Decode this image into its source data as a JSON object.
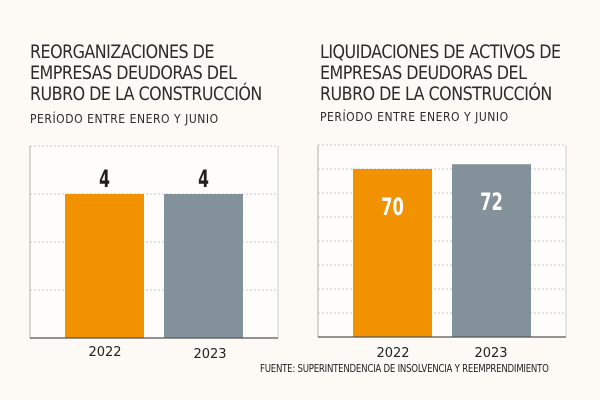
{
  "colors": {
    "orange": "#f39200",
    "gray": "#83919a",
    "background": "#fdf9f5",
    "plot_bg": "#fefcfa",
    "text": "#2b2b2b"
  },
  "source": "FUENTE: SUPERINTENDENCIA DE INSOLVENCIA Y REEMPRENDIMIENTO",
  "chart_data": [
    {
      "type": "bar",
      "title_lines": [
        "REORGANIZACIONES DE",
        "EMPRESAS DEUDORAS DEL",
        "RUBRO DE LA CONSTRUCCIÓN"
      ],
      "subtitle": "PERÍODO ENTRE ENERO Y JUNIO",
      "categories": [
        "2022",
        "2023"
      ],
      "values": [
        4,
        4
      ],
      "value_labels": [
        "4",
        "4"
      ],
      "label_position": "above",
      "ylim": [
        0,
        5.333
      ],
      "grid_lines": 4,
      "grid": true,
      "xlabel": "",
      "ylabel": ""
    },
    {
      "type": "bar",
      "title_lines": [
        "LIQUIDACIONES DE ACTIVOS DE",
        "EMPRESAS DEUDORAS DEL",
        "RUBRO DE LA CONSTRUCCIÓN"
      ],
      "subtitle": "PERÍODO ENTRE ENERO Y JUNIO",
      "categories": [
        "2022",
        "2023"
      ],
      "values": [
        70,
        72
      ],
      "value_labels": [
        "70",
        "72"
      ],
      "label_position": "inside",
      "ylim": [
        0,
        80
      ],
      "grid_lines": 8,
      "grid": true,
      "xlabel": "",
      "ylabel": ""
    }
  ]
}
